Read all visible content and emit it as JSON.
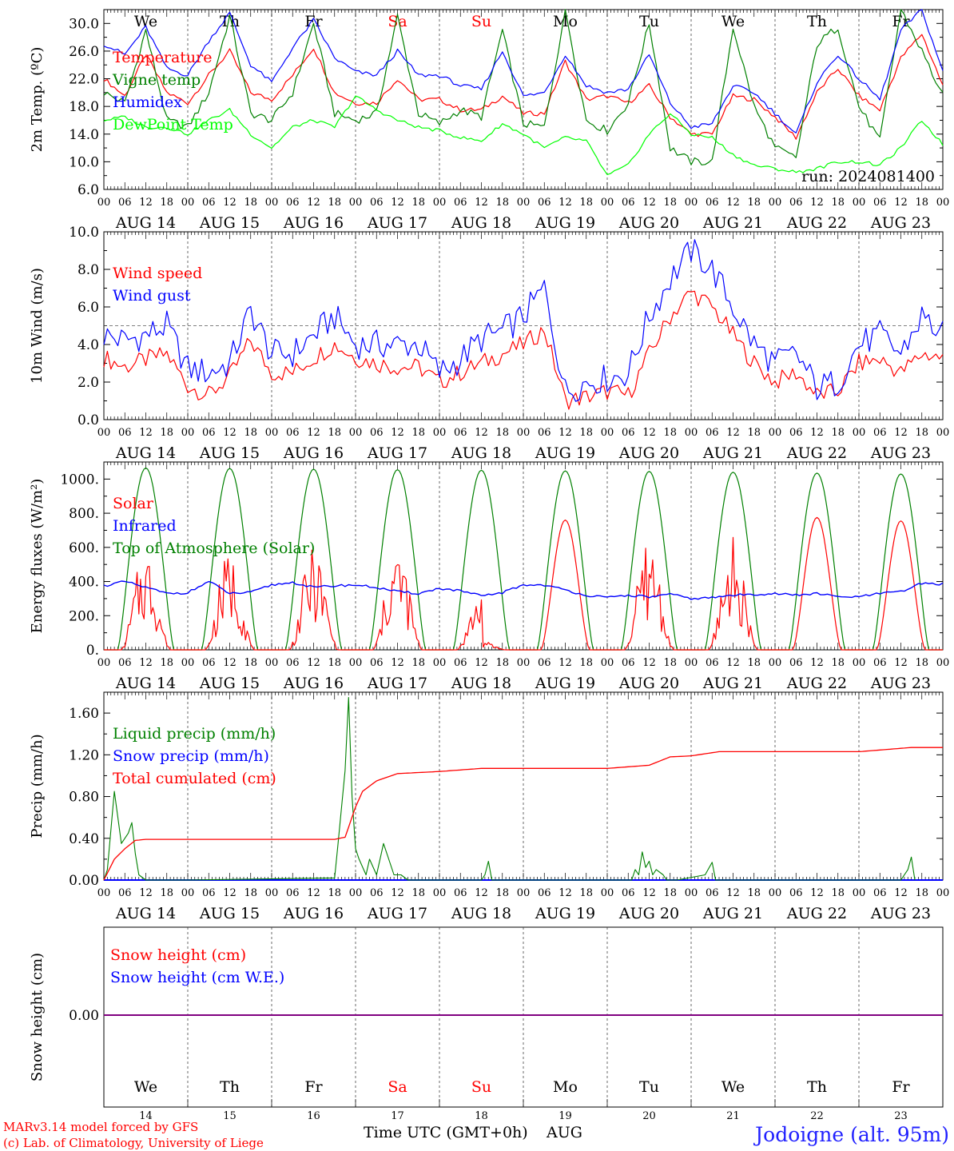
{
  "days": {
    "abbr": [
      "We",
      "Th",
      "Fr",
      "Sa",
      "Su",
      "Mo",
      "Tu",
      "We",
      "Th",
      "Fr"
    ],
    "abbr_colors": [
      "#000000",
      "#000000",
      "#000000",
      "#ff0000",
      "#ff0000",
      "#000000",
      "#000000",
      "#000000",
      "#000000",
      "#000000"
    ],
    "dates": [
      "AUG 14",
      "AUG 15",
      "AUG 16",
      "AUG 17",
      "AUG 18",
      "AUG 19",
      "AUG 20",
      "AUG 21",
      "AUG 22",
      "AUG 23"
    ],
    "numbers": [
      "14",
      "15",
      "16",
      "17",
      "18",
      "19",
      "20",
      "21",
      "22",
      "23"
    ],
    "hour_labels": [
      "00",
      "06",
      "12",
      "18"
    ],
    "final_hour": "00"
  },
  "footer": {
    "xlabel": "Time UTC (GMT+0h)",
    "month": "AUG",
    "credit1": "MARv3.14 model forced by GFS",
    "credit2": "(c) Lab. of Climatology, University of Liege",
    "station": "Jodoigne (alt. 95m)"
  },
  "colors": {
    "red": "#ff0000",
    "green": "#008000",
    "blue": "#0000ff",
    "lightgreen": "#00ff00",
    "purple": "#800080"
  },
  "chart_data": [
    {
      "type": "line",
      "ylabel": "2m Temp. (ºC)",
      "ylim": [
        6,
        32
      ],
      "yticks": [
        "6.0",
        "10.0",
        "14.0",
        "18.0",
        "22.0",
        "26.0",
        "30.0"
      ],
      "ytick_values": [
        6,
        10,
        14,
        18,
        22,
        26,
        30
      ],
      "annotation": "run: 2024081400",
      "x_hours": [
        0,
        6,
        12,
        18,
        24,
        30,
        36,
        42,
        48,
        54,
        60,
        66,
        72,
        78,
        84,
        90,
        96,
        102,
        108,
        114,
        120,
        126,
        132,
        138,
        144,
        150,
        156,
        162,
        168,
        174,
        180,
        186,
        192,
        198,
        204,
        210,
        216,
        222,
        228,
        234,
        240
      ],
      "series": [
        {
          "name": "Temperature",
          "color": "#ff0000",
          "values": [
            22,
            19.5,
            25.5,
            20,
            18.5,
            22.5,
            26,
            20,
            19,
            22.5,
            26.5,
            20,
            18.5,
            18.5,
            22,
            19,
            19,
            17.5,
            17.5,
            19.5,
            17,
            17,
            24.5,
            19,
            19.5,
            18.5,
            21,
            16.5,
            14,
            14,
            19.5,
            19,
            16.5,
            13.5,
            20,
            23.5,
            19.5,
            17.5,
            25,
            28.5,
            21
          ]
        },
        {
          "name": "Vigne temp",
          "color": "#008000",
          "values": [
            20,
            18.5,
            29,
            16,
            15,
            20,
            31,
            17,
            16,
            20,
            30,
            17,
            16,
            17,
            31,
            17,
            15.5,
            17.5,
            16.5,
            29,
            15.5,
            15,
            32,
            16,
            14.5,
            18.5,
            30,
            12,
            10,
            10,
            29.5,
            18,
            12,
            10.5,
            27,
            29.5,
            18,
            13,
            32,
            26,
            19.5
          ]
        },
        {
          "name": "Humidex",
          "color": "#0000ff",
          "values": [
            27,
            25.5,
            29.5,
            23.5,
            22.5,
            27.5,
            31.5,
            24,
            21.5,
            26.5,
            30.5,
            25,
            23,
            22.5,
            26,
            22.5,
            22.5,
            21,
            20.5,
            26,
            19.5,
            20,
            25.5,
            21,
            20,
            20.5,
            25.5,
            18.5,
            15,
            15.5,
            21,
            20,
            17,
            14,
            21.5,
            25.5,
            22,
            19,
            29,
            32,
            23
          ]
        },
        {
          "name": "DewPoint Temp",
          "color": "#00ff00",
          "values": [
            16,
            16.5,
            15,
            15,
            14,
            16,
            17.5,
            14,
            12,
            15,
            16,
            15,
            19.5,
            17.5,
            16,
            15,
            14.5,
            13.5,
            13,
            15.5,
            14,
            12,
            13.5,
            13,
            8,
            9.5,
            14,
            17,
            14,
            13.5,
            11,
            9.5,
            9,
            8.5,
            9,
            10,
            10,
            9.5,
            12,
            16,
            12.5
          ]
        }
      ]
    },
    {
      "type": "line",
      "ylabel": "10m Wind (m/s)",
      "ylim": [
        0,
        10
      ],
      "yticks": [
        "0.0",
        "2.0",
        "4.0",
        "6.0",
        "8.0",
        "10.0"
      ],
      "ytick_values": [
        0,
        2,
        4,
        6,
        8,
        10
      ],
      "reference_line": 5,
      "x_hours": [
        0,
        6,
        12,
        18,
        24,
        30,
        36,
        42,
        48,
        54,
        60,
        66,
        72,
        78,
        84,
        90,
        96,
        102,
        108,
        114,
        120,
        126,
        132,
        138,
        144,
        150,
        156,
        162,
        168,
        174,
        180,
        186,
        192,
        198,
        204,
        210,
        216,
        222,
        228,
        234,
        240
      ],
      "series": [
        {
          "name": "Wind speed",
          "color": "#ff0000",
          "values": [
            3.3,
            2.8,
            3.2,
            3.5,
            1.8,
            1.3,
            2.3,
            4.2,
            2.5,
            2.5,
            3.3,
            4,
            3.3,
            3,
            2.8,
            2.8,
            2,
            2.5,
            3,
            3.5,
            4,
            4.8,
            1,
            1.2,
            1.5,
            1.3,
            3.5,
            5.5,
            6.8,
            6,
            4.5,
            3,
            2,
            2.5,
            1.3,
            1.5,
            3,
            3.2,
            2.5,
            3.5,
            3.3
          ]
        },
        {
          "name": "Wind gust",
          "color": "#0000ff",
          "values": [
            4.5,
            4.2,
            4.5,
            5,
            2.7,
            2.5,
            3,
            5.8,
            3.5,
            3.5,
            4.5,
            5.5,
            4,
            4,
            4,
            4,
            2.5,
            3.2,
            4.3,
            4.7,
            5.5,
            7,
            1.5,
            2,
            2.2,
            2.5,
            5.5,
            7.5,
            9,
            8,
            6,
            4,
            3,
            3.5,
            1.7,
            2,
            4,
            4.5,
            3.5,
            5.5,
            4.5
          ]
        }
      ]
    },
    {
      "type": "line",
      "ylabel": "Energy fluxes (W/m²)",
      "ylim": [
        0,
        1100
      ],
      "yticks": [
        "0.",
        "200.",
        "400.",
        "600.",
        "800.",
        "1000."
      ],
      "ytick_values": [
        0,
        200,
        400,
        600,
        800,
        1000
      ],
      "toa_peaks": [
        1065,
        1062,
        1058,
        1055,
        1052,
        1048,
        1045,
        1040,
        1035,
        1030
      ],
      "solar_peaks": [
        600,
        580,
        600,
        620,
        350,
        760,
        650,
        660,
        775,
        755
      ],
      "infrared": [
        375,
        400,
        365,
        330,
        335,
        400,
        330,
        335,
        380,
        395,
        365,
        375,
        380,
        365,
        340,
        330,
        360,
        345,
        315,
        335,
        380,
        380,
        350,
        320,
        305,
        320,
        310,
        325,
        300,
        305,
        320,
        325,
        330,
        320,
        330,
        310,
        310,
        330,
        340,
        390,
        385
      ],
      "series": [
        {
          "name": "Solar",
          "color": "#ff0000"
        },
        {
          "name": "Infrared",
          "color": "#0000ff"
        },
        {
          "name": "Top of Atmosphere (Solar)",
          "color": "#008000"
        }
      ]
    },
    {
      "type": "line",
      "ylabel": "Precip (mm/h)",
      "ylim": [
        0,
        1.8
      ],
      "yticks": [
        "0.00",
        "0.40",
        "0.80",
        "1.20",
        "1.60"
      ],
      "ytick_values": [
        0,
        0.4,
        0.8,
        1.2,
        1.6
      ],
      "cumulated_cm": {
        "hours": [
          0,
          3,
          6,
          9,
          12,
          24,
          48,
          66,
          69,
          72,
          74,
          78,
          84,
          96,
          108,
          120,
          144,
          156,
          162,
          168,
          176,
          216,
          231,
          240
        ],
        "values": [
          0,
          0.2,
          0.3,
          0.38,
          0.39,
          0.39,
          0.39,
          0.39,
          0.41,
          0.7,
          0.85,
          0.95,
          1.02,
          1.04,
          1.07,
          1.07,
          1.07,
          1.1,
          1.18,
          1.19,
          1.23,
          1.23,
          1.27,
          1.27
        ]
      },
      "liquid_peaks": {
        "hours": [
          0,
          1,
          3,
          5,
          7,
          8,
          9,
          10,
          12,
          24,
          66,
          67,
          69,
          70,
          71,
          72,
          73,
          75,
          76,
          78,
          80,
          83,
          85,
          87,
          90,
          108,
          109,
          110,
          111,
          151,
          152,
          153,
          154,
          155,
          156,
          157,
          158,
          160,
          161,
          164,
          172,
          174,
          175,
          176,
          228,
          230,
          231,
          232
        ],
        "values": [
          0,
          0.1,
          0.85,
          0.35,
          0.45,
          0.55,
          0.25,
          0.05,
          0,
          0,
          0.02,
          0.35,
          1.05,
          1.75,
          0.8,
          0.3,
          0.2,
          0.05,
          0.2,
          0.05,
          0.35,
          0.05,
          0.05,
          0,
          0,
          0,
          0.05,
          0.18,
          0,
          0,
          0.1,
          0.05,
          0.27,
          0.12,
          0.18,
          0.05,
          0.1,
          0.05,
          0,
          0,
          0.05,
          0.17,
          0,
          0,
          0,
          0.1,
          0.22,
          0
        ]
      },
      "series": [
        {
          "name": "Liquid precip (mm/h)",
          "color": "#008000"
        },
        {
          "name": "Snow precip (mm/h)",
          "color": "#0000ff"
        },
        {
          "name": "Total cumulated (cm)",
          "color": "#ff0000"
        }
      ]
    },
    {
      "type": "line",
      "ylabel": "Snow height (cm)",
      "yticks": [
        "0.00"
      ],
      "ytick_values": [
        0
      ],
      "series": [
        {
          "name": "Snow height (cm)",
          "color": "#ff0000",
          "values": [
            0,
            0
          ]
        },
        {
          "name": "Snow height (cm W.E.)",
          "color": "#0000ff",
          "values": [
            0,
            0
          ]
        }
      ]
    }
  ]
}
